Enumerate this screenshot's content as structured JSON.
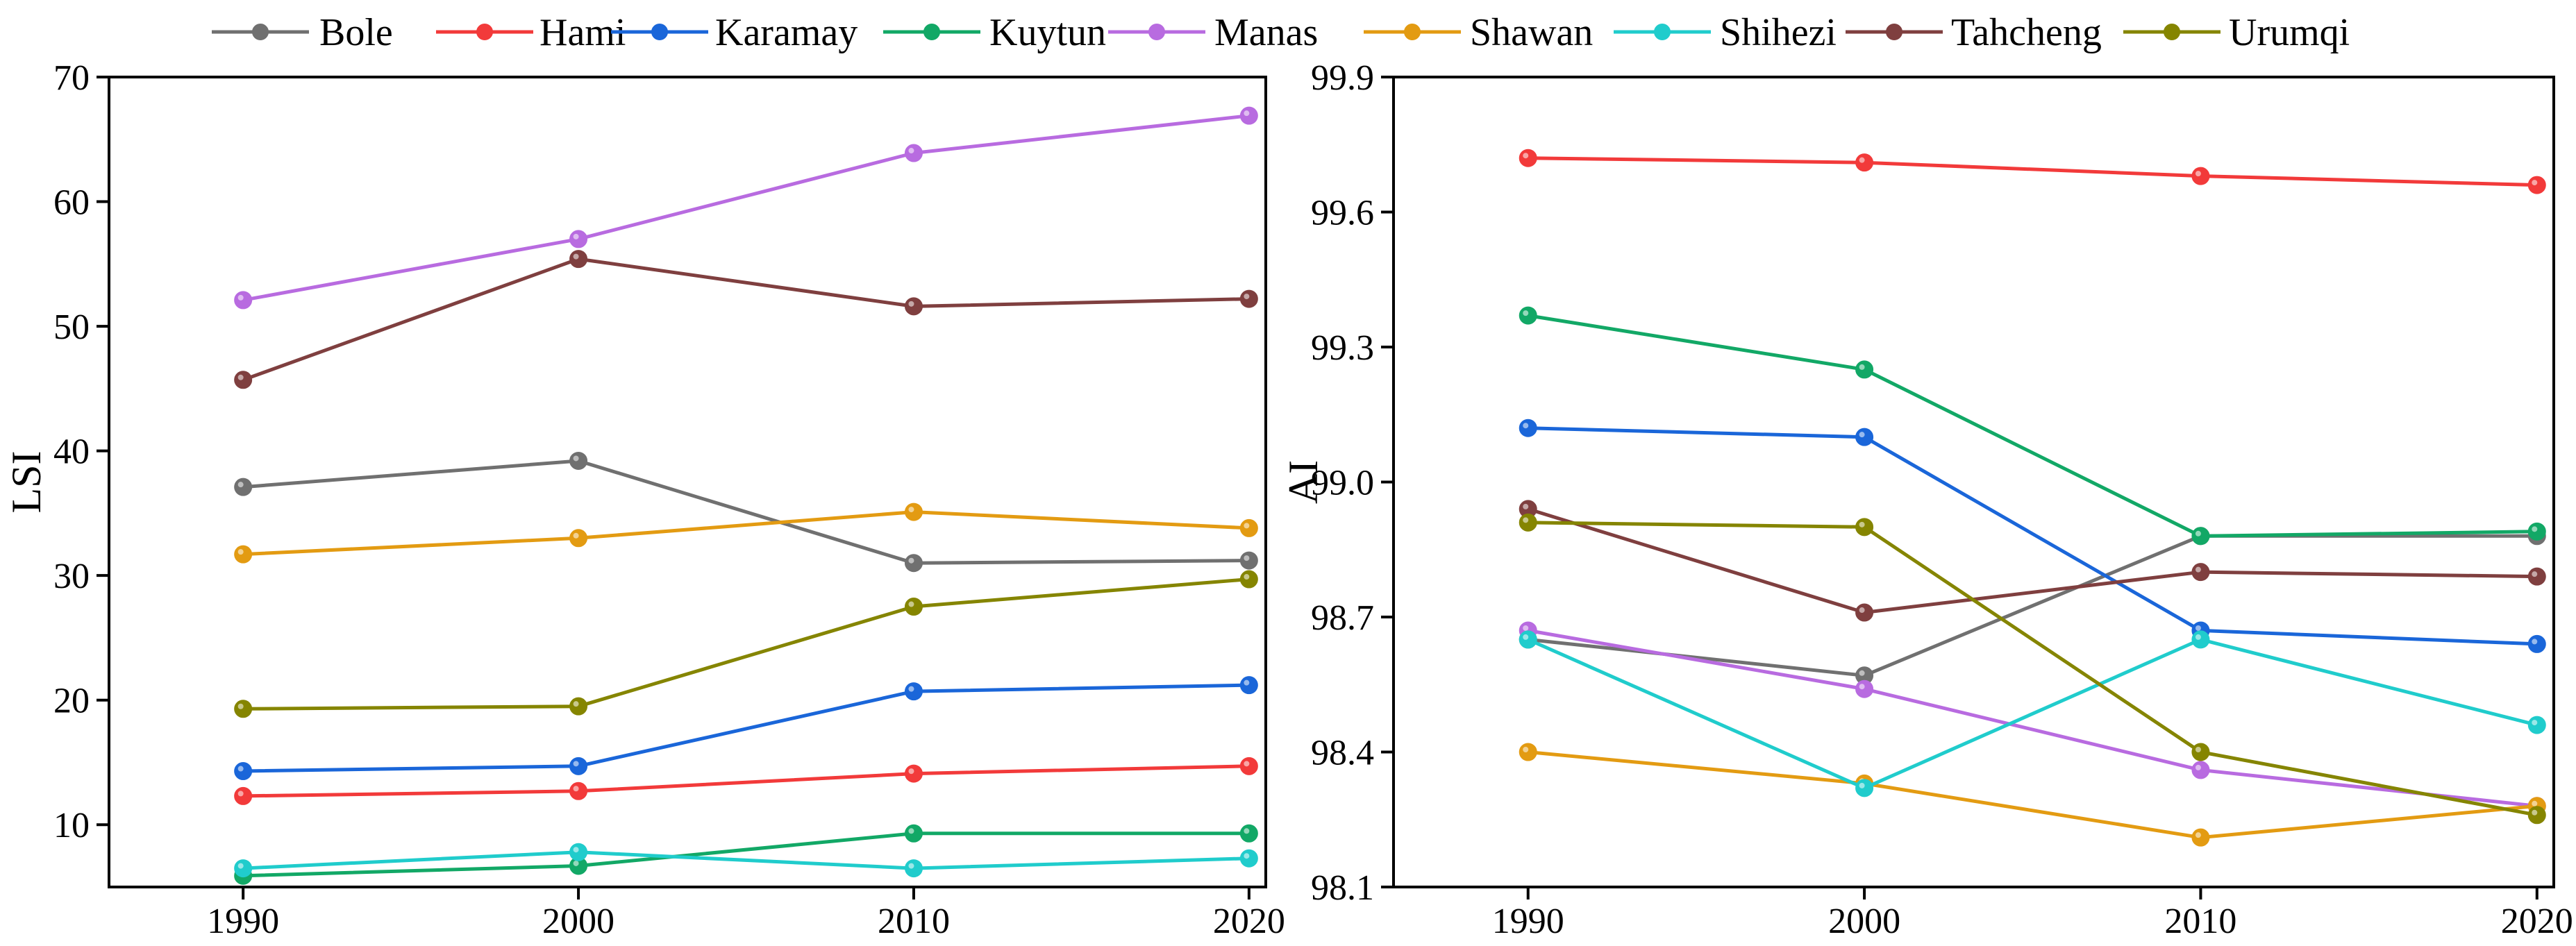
{
  "legend": {
    "entries": [
      {
        "name": "Bole",
        "color": "#707070"
      },
      {
        "name": "Hami",
        "color": "#f23a3a"
      },
      {
        "name": "Karamay",
        "color": "#1a66d9"
      },
      {
        "name": "Kuytun",
        "color": "#12a866"
      },
      {
        "name": "Manas",
        "color": "#b86be0"
      },
      {
        "name": "Shawan",
        "color": "#e39b12"
      },
      {
        "name": "Shihezi",
        "color": "#20cccc"
      },
      {
        "name": "Tahcheng",
        "color": "#7f3f3f"
      },
      {
        "name": "Urumqi",
        "color": "#858500"
      }
    ]
  },
  "chart_data": [
    {
      "type": "line",
      "title": "",
      "xlabel": "",
      "ylabel": "LSI",
      "x": [
        1990,
        2000,
        2010,
        2020
      ],
      "xticks": [
        "1990",
        "2000",
        "2010",
        "2020"
      ],
      "xlim": [
        1986,
        2020.5
      ],
      "ylim": [
        5,
        70
      ],
      "yticks": [
        "10",
        "20",
        "30",
        "40",
        "50",
        "60",
        "70"
      ],
      "grid": false,
      "series": [
        {
          "name": "Bole",
          "color": "#707070",
          "values": [
            37.1,
            39.2,
            31.0,
            31.2
          ]
        },
        {
          "name": "Hami",
          "color": "#f23a3a",
          "values": [
            12.3,
            12.7,
            14.1,
            14.7
          ]
        },
        {
          "name": "Karamay",
          "color": "#1a66d9",
          "values": [
            14.3,
            14.7,
            20.7,
            21.2
          ]
        },
        {
          "name": "Kuytun",
          "color": "#12a866",
          "values": [
            5.9,
            6.7,
            9.3,
            9.3
          ]
        },
        {
          "name": "Manas",
          "color": "#b86be0",
          "values": [
            52.1,
            57.0,
            63.9,
            66.9
          ]
        },
        {
          "name": "Shawan",
          "color": "#e39b12",
          "values": [
            31.7,
            33.0,
            35.1,
            33.8
          ]
        },
        {
          "name": "Shihezi",
          "color": "#20cccc",
          "values": [
            6.5,
            7.8,
            6.5,
            7.3
          ]
        },
        {
          "name": "Tahcheng",
          "color": "#7f3f3f",
          "values": [
            45.7,
            55.4,
            51.6,
            52.2
          ]
        },
        {
          "name": "Urumqi",
          "color": "#858500",
          "values": [
            19.3,
            19.5,
            27.5,
            29.7
          ]
        }
      ]
    },
    {
      "type": "line",
      "title": "",
      "xlabel": "",
      "ylabel": "AI",
      "x": [
        1990,
        2000,
        2010,
        2020
      ],
      "xticks": [
        "1990",
        "2000",
        "2010",
        "2020"
      ],
      "xlim": [
        1986,
        2020.5
      ],
      "ylim": [
        98.1,
        99.9
      ],
      "yticks": [
        "98.1",
        "98.4",
        "98.7",
        "99.0",
        "99.3",
        "99.6",
        "99.9"
      ],
      "grid": false,
      "series": [
        {
          "name": "Bole",
          "color": "#707070",
          "values": [
            98.65,
            98.57,
            98.88,
            98.88
          ]
        },
        {
          "name": "Hami",
          "color": "#f23a3a",
          "values": [
            99.72,
            99.71,
            99.68,
            99.66
          ]
        },
        {
          "name": "Karamay",
          "color": "#1a66d9",
          "values": [
            99.12,
            99.1,
            98.67,
            98.64
          ]
        },
        {
          "name": "Kuytun",
          "color": "#12a866",
          "values": [
            99.37,
            99.25,
            98.88,
            98.89
          ]
        },
        {
          "name": "Manas",
          "color": "#b86be0",
          "values": [
            98.67,
            98.54,
            98.36,
            98.28
          ]
        },
        {
          "name": "Shawan",
          "color": "#e39b12",
          "values": [
            98.4,
            98.33,
            98.21,
            98.28
          ]
        },
        {
          "name": "Shihezi",
          "color": "#20cccc",
          "values": [
            98.65,
            98.32,
            98.65,
            98.46
          ]
        },
        {
          "name": "Tahcheng",
          "color": "#7f3f3f",
          "values": [
            98.94,
            98.71,
            98.8,
            98.79
          ]
        },
        {
          "name": "Urumqi",
          "color": "#858500",
          "values": [
            98.91,
            98.9,
            98.4,
            98.26
          ]
        }
      ]
    }
  ]
}
